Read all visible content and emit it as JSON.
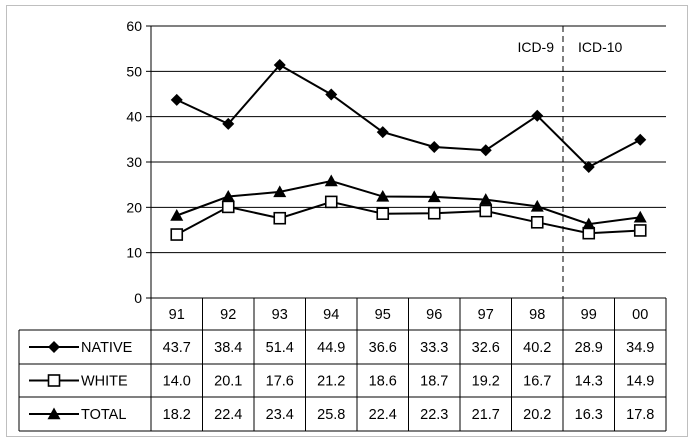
{
  "chart_data": {
    "type": "line",
    "title": "",
    "xlabel": "",
    "ylabel": "",
    "categories": [
      "91",
      "92",
      "93",
      "94",
      "95",
      "96",
      "97",
      "98",
      "99",
      "00"
    ],
    "ylim": [
      0,
      60
    ],
    "yticks": [
      0,
      10,
      20,
      30,
      40,
      50,
      60
    ],
    "grid": true,
    "legend": "data-table-left",
    "series": [
      {
        "name": "NATIVE",
        "marker": "diamond",
        "values": [
          43.7,
          38.4,
          51.4,
          44.9,
          36.6,
          33.3,
          32.6,
          40.2,
          28.9,
          34.9
        ],
        "labels": [
          "43.7",
          "38.4",
          "51.4",
          "44.9",
          "36.6",
          "33.3",
          "32.6",
          "40.2",
          "28.9",
          "34.9"
        ]
      },
      {
        "name": "WHITE",
        "marker": "square-open",
        "values": [
          14.0,
          20.1,
          17.6,
          21.2,
          18.6,
          18.7,
          19.2,
          16.7,
          14.3,
          14.9
        ],
        "labels": [
          "14.0",
          "20.1",
          "17.6",
          "21.2",
          "18.6",
          "18.7",
          "19.2",
          "16.7",
          "14.3",
          "14.9"
        ]
      },
      {
        "name": "TOTAL",
        "marker": "triangle",
        "values": [
          18.2,
          22.4,
          23.4,
          25.8,
          22.4,
          22.3,
          21.7,
          20.2,
          16.3,
          17.8
        ],
        "labels": [
          "18.2",
          "22.4",
          "23.4",
          "25.8",
          "22.4",
          "22.3",
          "21.7",
          "20.2",
          "16.3",
          "17.8"
        ]
      }
    ],
    "annotations": [
      {
        "text": "ICD-9",
        "side": "left"
      },
      {
        "text": "ICD-10",
        "side": "right"
      }
    ],
    "divider_between": [
      "98",
      "99"
    ]
  }
}
